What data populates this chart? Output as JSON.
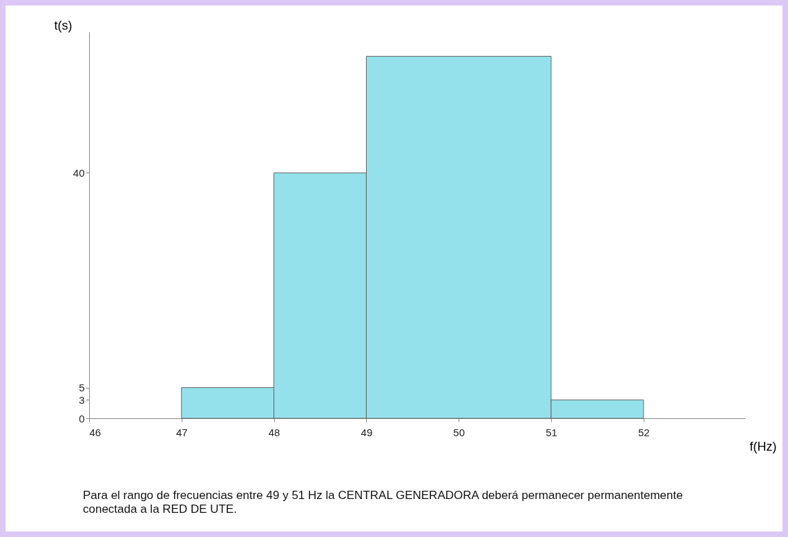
{
  "chart_data": {
    "type": "histogram",
    "bins": [
      47,
      48,
      49,
      51,
      52
    ],
    "values": [
      5,
      40,
      59,
      3
    ],
    "color": "#94e1eb",
    "xlim": [
      46,
      53.1
    ],
    "xticks": [
      46,
      47,
      48,
      49,
      50,
      51,
      52
    ],
    "ylim": [
      0,
      63
    ],
    "yticks": [
      0,
      3,
      5,
      40
    ],
    "xlabel": "f(Hz)",
    "ylabel": "t(s)",
    "annotations": [
      "Para el rango de frecuencias entre 49 y 51 Hz la CENTRAL GENERADORA deberá permanecer permanentemente conectada a la RED DE UTE."
    ]
  }
}
